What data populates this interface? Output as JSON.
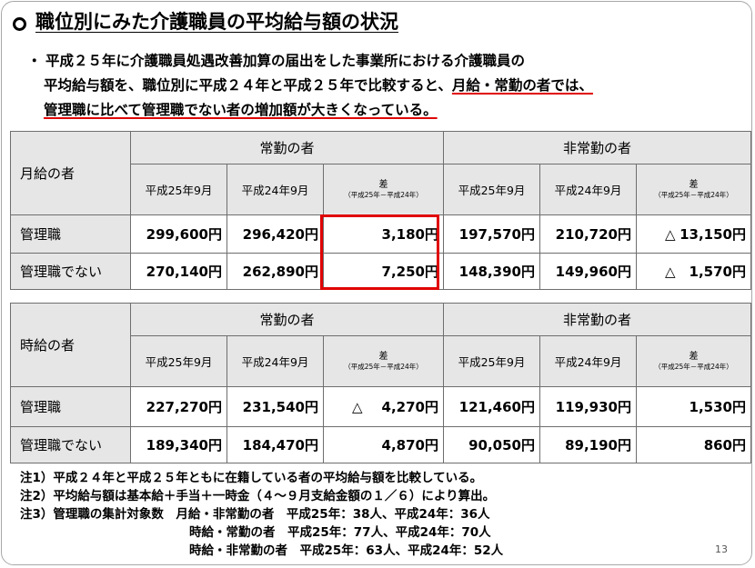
{
  "title": "職位別にみた介護職員の平均給与額の状況",
  "bullet": {
    "mark": "・",
    "line1": "平成２５年に介護職員処遇改善加算の届出をした事業所における介護職員の",
    "line2_plain": "平均給与額を、職位別に平成２４年と平成２５年で比較すると、",
    "line2_red": "月給・常勤の者では、",
    "line3_red": "管理職に比べて管理職でない者の増加額が大きくなっている。"
  },
  "table_monthly": {
    "corner": "月給の者",
    "group_fulltime": "常勤の者",
    "group_parttime": "非常勤の者",
    "sub": [
      "平成25年9月",
      "平成24年9月",
      "差",
      "平成25年9月",
      "平成24年9月",
      "差"
    ],
    "diff_note": "（平成25年－平成24年）",
    "rows": [
      {
        "label": "管理職",
        "values": [
          "299,600円",
          "296,420円",
          "3,180円",
          "197,570円",
          "210,720円",
          "13,150円"
        ],
        "tri": [
          "",
          "△"
        ]
      },
      {
        "label": "管理職でない",
        "values": [
          "270,140円",
          "262,890円",
          "7,250円",
          "148,390円",
          "149,960円",
          "1,570円"
        ],
        "tri": [
          "",
          "△"
        ]
      }
    ]
  },
  "table_hourly": {
    "corner": "時給の者",
    "group_fulltime": "常勤の者",
    "group_parttime": "非常勤の者",
    "sub": [
      "平成25年9月",
      "平成24年9月",
      "差",
      "平成25年9月",
      "平成24年9月",
      "差"
    ],
    "diff_note": "（平成25年－平成24年）",
    "rows": [
      {
        "label": "管理職",
        "values": [
          "227,270円",
          "231,540円",
          "4,270円",
          "121,460円",
          "119,930円",
          "1,530円"
        ],
        "tri": [
          "△",
          ""
        ]
      },
      {
        "label": "管理職でない",
        "values": [
          "189,340円",
          "184,470円",
          "4,870円",
          "90,050円",
          "89,190円",
          "860円"
        ],
        "tri": [
          "",
          ""
        ]
      }
    ]
  },
  "notes": {
    "n1": "注1）平成２４年と平成２５年ともに在籍している者の平均給与額を比較している。",
    "n2": "注2）平均給与額は基本給＋手当＋一時金（４～９月支給金額の１／６）により算出。",
    "n3a": "注3）管理職の集計対象数",
    "n3b": "月給・非常勤の者　平成25年：38人、平成24年：36人",
    "n3c": "時給・常勤の者　平成25年：77人、平成24年：70人",
    "n3d": "時給・非常勤の者　平成25年：63人、平成24年：52人"
  },
  "page_number": "13",
  "colors": {
    "highlight": "#e00000",
    "header_bg": "#e6e6e6"
  }
}
